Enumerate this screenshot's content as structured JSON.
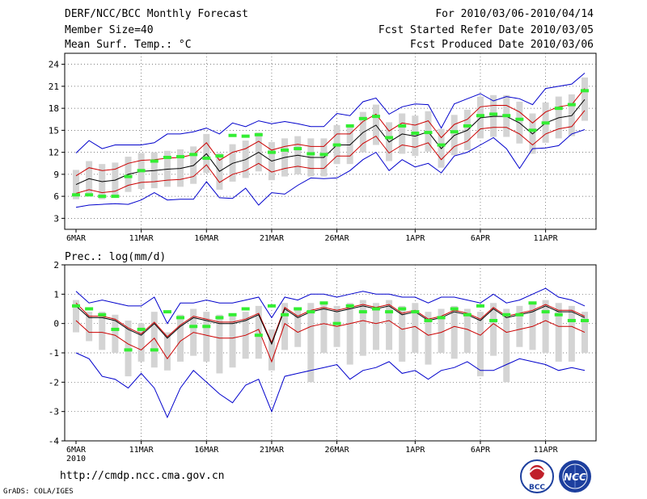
{
  "header": {
    "title": "DERF/NCC/BCC Monthly Forecast",
    "member": "Member Size=40",
    "variable": "Mean Surf. Temp.: °C",
    "period": "For 2010/03/06-2010/04/14",
    "started": "Fcst Started Refer Date 2010/03/05",
    "produced": "Fcst Produced Date 2010/03/06"
  },
  "footer": {
    "url": "http://cmdp.ncc.cma.gov.cn",
    "grads": "GrADS: COLA/IGES",
    "logo1": "BCC",
    "logo2": "NCC"
  },
  "colors": {
    "ensmean": "#000000",
    "sd": "#cc0000",
    "minmax": "#0000cc",
    "obs": "#33ee33",
    "box": "#d4d4d4"
  },
  "chart_data": [
    {
      "type": "line",
      "title": "Mean Surf. Temp.: °C",
      "x_labels": [
        {
          "day": 0,
          "label": "6MAR"
        },
        {
          "day": 5,
          "label": "11MAR"
        },
        {
          "day": 10,
          "label": "16MAR"
        },
        {
          "day": 15,
          "label": "21MAR"
        },
        {
          "day": 20,
          "label": "26MAR"
        },
        {
          "day": 26,
          "label": "1APR"
        },
        {
          "day": 31,
          "label": "6APR"
        },
        {
          "day": 36,
          "label": "11APR"
        }
      ],
      "year_label": "2010",
      "yticks": [
        3,
        6,
        9,
        12,
        15,
        18,
        21,
        24
      ],
      "ylim": [
        1.5,
        25.5
      ],
      "n_days": 40,
      "series": [
        {
          "name": "ensemble mean",
          "values": [
            7.6,
            8.4,
            8.0,
            8.2,
            9.0,
            9.4,
            9.5,
            9.7,
            9.8,
            10.2,
            11.8,
            9.4,
            10.5,
            11.0,
            12.0,
            10.8,
            11.3,
            11.6,
            11.3,
            11.3,
            13.0,
            13.0,
            14.7,
            15.7,
            13.4,
            14.5,
            14.2,
            14.8,
            12.5,
            14.3,
            15.0,
            16.7,
            16.9,
            16.9,
            16.0,
            14.5,
            16.0,
            16.7,
            17.0,
            19.2
          ]
        },
        {
          "name": "ensemble max",
          "values": [
            11.9,
            13.6,
            12.5,
            13.0,
            13.0,
            13.0,
            13.3,
            14.5,
            14.5,
            14.8,
            15.3,
            14.5,
            16.0,
            15.5,
            16.3,
            15.9,
            16.2,
            15.9,
            15.5,
            15.5,
            17.3,
            17.0,
            18.9,
            19.4,
            17.2,
            18.2,
            18.6,
            18.5,
            15.3,
            18.6,
            19.3,
            20.0,
            19.0,
            19.6,
            19.3,
            18.5,
            20.7,
            21.0,
            21.3,
            22.8
          ]
        },
        {
          "name": "ensemble min",
          "values": [
            4.5,
            4.8,
            4.9,
            5.0,
            4.9,
            5.5,
            6.5,
            5.5,
            5.6,
            5.6,
            8.0,
            5.8,
            5.7,
            7.1,
            4.8,
            6.5,
            6.3,
            7.5,
            8.5,
            8.4,
            8.5,
            9.5,
            11.0,
            12.0,
            9.5,
            11.0,
            10.0,
            10.5,
            9.2,
            11.5,
            12.0,
            13.0,
            14.0,
            12.5,
            9.8,
            12.5,
            12.6,
            12.9,
            14.5,
            15.1
          ]
        },
        {
          "name": "mean + sd",
          "values": [
            8.8,
            9.9,
            9.5,
            9.7,
            10.5,
            10.9,
            11.0,
            11.2,
            11.3,
            11.7,
            13.3,
            10.9,
            12.0,
            12.5,
            13.5,
            12.3,
            12.8,
            13.1,
            12.8,
            12.8,
            14.5,
            14.5,
            16.2,
            17.2,
            14.9,
            16.0,
            15.7,
            16.3,
            14.0,
            15.8,
            16.5,
            18.2,
            18.4,
            18.4,
            17.5,
            16.0,
            17.5,
            18.2,
            18.5,
            20.7
          ]
        },
        {
          "name": "mean - sd",
          "values": [
            6.4,
            6.9,
            6.5,
            6.7,
            7.5,
            7.9,
            8.0,
            8.2,
            8.3,
            8.7,
            10.3,
            7.9,
            9.0,
            9.5,
            10.5,
            9.3,
            9.8,
            10.1,
            9.8,
            9.8,
            11.5,
            11.5,
            13.2,
            14.2,
            11.9,
            13.0,
            12.7,
            13.3,
            11.0,
            12.8,
            13.5,
            15.2,
            15.4,
            15.4,
            14.5,
            13.0,
            14.5,
            15.2,
            15.5,
            17.7
          ]
        },
        {
          "name": "observed",
          "values": [
            6.2,
            6.2,
            6.0,
            6.0,
            8.7,
            9.5,
            10.8,
            11.3,
            11.4,
            11.7,
            11.2,
            11.5,
            14.3,
            14.2,
            14.4,
            12.0,
            12.3,
            12.5,
            11.8,
            11.7,
            13.0,
            15.6,
            16.6,
            16.9,
            14.0,
            15.6,
            14.6,
            14.7,
            13.0,
            14.8,
            15.6,
            17.0,
            17.2,
            17.0,
            16.5,
            15.0,
            16.0,
            18.0,
            18.5,
            20.4
          ]
        },
        {
          "name": "box high",
          "values": [
            9.6,
            10.8,
            10.4,
            10.6,
            11.4,
            11.9,
            12.0,
            12.2,
            12.4,
            12.8,
            14.5,
            11.9,
            13.1,
            13.6,
            14.7,
            13.4,
            13.9,
            14.2,
            13.9,
            13.9,
            15.7,
            15.7,
            17.5,
            18.5,
            16.1,
            17.3,
            17.0,
            17.6,
            15.2,
            17.1,
            17.8,
            19.6,
            19.8,
            19.8,
            18.9,
            17.3,
            18.8,
            19.6,
            19.9,
            22.2
          ]
        },
        {
          "name": "box low",
          "values": [
            5.6,
            6.0,
            5.6,
            5.8,
            6.6,
            7.0,
            7.1,
            7.3,
            7.3,
            7.7,
            9.2,
            6.9,
            8.0,
            8.5,
            9.4,
            8.2,
            8.7,
            9.0,
            8.7,
            8.7,
            10.4,
            10.4,
            12.0,
            13.0,
            10.8,
            11.8,
            11.5,
            12.1,
            9.9,
            11.6,
            12.3,
            13.9,
            14.1,
            14.1,
            13.2,
            11.8,
            13.3,
            13.9,
            14.2,
            16.3
          ]
        }
      ]
    },
    {
      "type": "line",
      "title": "Prec.: log(mm/d)",
      "x_labels": [
        {
          "day": 0,
          "label": "6MAR"
        },
        {
          "day": 5,
          "label": "11MAR"
        },
        {
          "day": 10,
          "label": "16MAR"
        },
        {
          "day": 15,
          "label": "21MAR"
        },
        {
          "day": 20,
          "label": "26MAR"
        },
        {
          "day": 26,
          "label": "1APR"
        },
        {
          "day": 31,
          "label": "6APR"
        },
        {
          "day": 36,
          "label": "11APR"
        }
      ],
      "year_label": "2010",
      "yticks": [
        -4,
        -3,
        -2,
        -1,
        0,
        1,
        2
      ],
      "ylim": [
        -4,
        2
      ],
      "n_days": 40,
      "series": [
        {
          "name": "ensemble mean",
          "values": [
            0.6,
            0.2,
            0.2,
            0.1,
            -0.2,
            -0.4,
            0.0,
            -0.5,
            -0.1,
            0.2,
            0.1,
            0.0,
            0.0,
            0.1,
            0.3,
            -0.7,
            0.5,
            0.2,
            0.4,
            0.5,
            0.4,
            0.5,
            0.6,
            0.5,
            0.6,
            0.3,
            0.4,
            0.1,
            0.2,
            0.4,
            0.3,
            0.1,
            0.5,
            0.2,
            0.3,
            0.4,
            0.6,
            0.4,
            0.4,
            0.2
          ]
        },
        {
          "name": "ensemble max",
          "values": [
            1.1,
            0.7,
            0.8,
            0.7,
            0.6,
            0.6,
            0.9,
            0.0,
            0.7,
            0.7,
            0.8,
            0.7,
            0.7,
            0.8,
            0.9,
            0.2,
            0.9,
            0.8,
            1.0,
            1.0,
            0.9,
            1.0,
            1.1,
            1.0,
            1.0,
            0.9,
            0.9,
            0.7,
            0.9,
            0.9,
            0.8,
            0.7,
            1.0,
            0.7,
            0.8,
            1.0,
            1.2,
            0.9,
            0.8,
            0.6
          ]
        },
        {
          "name": "ensemble min",
          "values": [
            -1.0,
            -1.2,
            -1.8,
            -1.9,
            -2.2,
            -1.7,
            -2.2,
            -3.2,
            -2.2,
            -1.6,
            -2.0,
            -2.4,
            -2.7,
            -2.1,
            -1.9,
            -3.0,
            -1.8,
            -1.7,
            -1.6,
            -1.5,
            -1.4,
            -1.9,
            -1.6,
            -1.5,
            -1.3,
            -1.7,
            -1.6,
            -1.9,
            -1.6,
            -1.5,
            -1.3,
            -1.6,
            -1.6,
            -1.4,
            -1.2,
            -1.3,
            -1.4,
            -1.6,
            -1.5,
            -1.6
          ]
        },
        {
          "name": "mean + sd",
          "values": [
            0.7,
            0.25,
            0.25,
            0.15,
            -0.15,
            -0.35,
            0.05,
            -0.45,
            -0.05,
            0.25,
            0.15,
            0.05,
            0.05,
            0.15,
            0.35,
            -0.65,
            0.55,
            0.25,
            0.45,
            0.55,
            0.45,
            0.55,
            0.65,
            0.55,
            0.65,
            0.35,
            0.45,
            0.15,
            0.25,
            0.45,
            0.35,
            0.15,
            0.55,
            0.25,
            0.35,
            0.45,
            0.65,
            0.45,
            0.45,
            0.25
          ]
        },
        {
          "name": "mean - sd",
          "values": [
            0.1,
            -0.3,
            -0.3,
            -0.4,
            -0.7,
            -0.9,
            -0.5,
            -1.2,
            -0.6,
            -0.3,
            -0.4,
            -0.5,
            -0.5,
            -0.4,
            -0.2,
            -1.3,
            0.0,
            -0.3,
            -0.1,
            0.0,
            -0.1,
            0.0,
            0.1,
            0.0,
            0.1,
            -0.2,
            -0.1,
            -0.4,
            -0.3,
            -0.1,
            -0.2,
            -0.4,
            0.0,
            -0.3,
            -0.2,
            -0.1,
            0.1,
            -0.1,
            -0.1,
            -0.3
          ]
        },
        {
          "name": "observed",
          "values": [
            0.6,
            0.5,
            0.3,
            -0.2,
            -0.9,
            -0.2,
            -0.9,
            0.4,
            0.2,
            -0.1,
            -0.1,
            0.2,
            0.3,
            0.5,
            -0.4,
            0.6,
            0.3,
            0.5,
            0.4,
            0.7,
            0.0,
            0.6,
            0.4,
            0.5,
            0.4,
            0.5,
            0.4,
            0.1,
            0.2,
            0.5,
            0.3,
            0.6,
            0.1,
            0.3,
            0.3,
            0.7,
            0.4,
            0.3,
            0.1,
            0.1
          ]
        },
        {
          "name": "box high",
          "values": [
            0.8,
            0.4,
            0.4,
            0.3,
            0.1,
            0.0,
            0.4,
            -0.3,
            0.3,
            0.5,
            0.4,
            0.3,
            0.3,
            0.4,
            0.6,
            -0.2,
            0.7,
            0.5,
            0.7,
            0.7,
            0.6,
            0.7,
            0.8,
            0.7,
            0.8,
            0.6,
            0.7,
            0.4,
            0.5,
            0.6,
            0.5,
            0.4,
            0.7,
            0.5,
            0.6,
            0.7,
            0.8,
            0.7,
            0.6,
            0.4
          ]
        },
        {
          "name": "box low",
          "values": [
            -0.3,
            -0.6,
            -0.9,
            -1.0,
            -1.8,
            -1.3,
            -1.5,
            -1.6,
            -1.3,
            -1.1,
            -1.3,
            -1.7,
            -1.5,
            -1.2,
            -1.2,
            -1.6,
            -0.9,
            -0.8,
            -2.0,
            -1.0,
            -0.8,
            -1.4,
            -1.1,
            -0.9,
            -0.9,
            -1.3,
            -1.0,
            -1.4,
            -1.0,
            -1.2,
            -1.0,
            -1.8,
            -1.1,
            -2.0,
            -0.8,
            -0.9,
            -1.0,
            -1.3,
            -1.3,
            -1.0
          ]
        }
      ]
    }
  ]
}
